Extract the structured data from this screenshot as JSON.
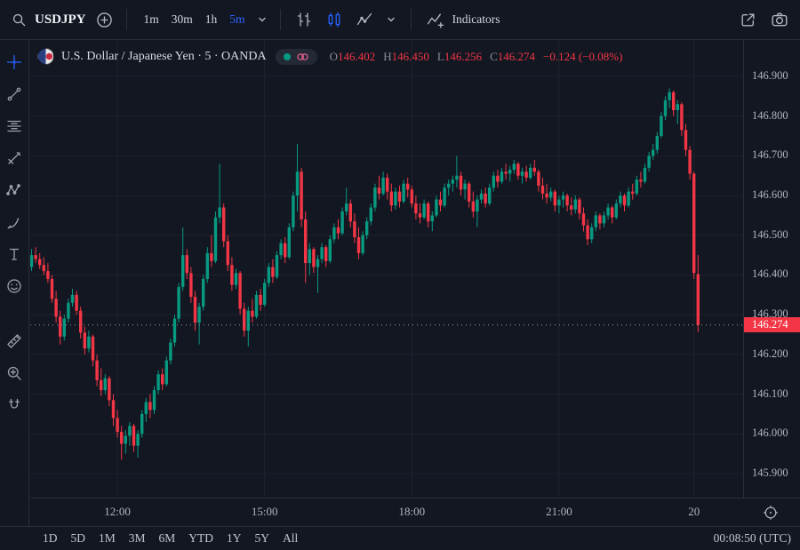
{
  "header": {
    "symbol": "USDJPY",
    "intervals": [
      {
        "label": "1m"
      },
      {
        "label": "30m"
      },
      {
        "label": "1h"
      },
      {
        "label": "5m",
        "active": true
      }
    ],
    "indicators_label": "Indicators"
  },
  "legend": {
    "title": "U.S. Dollar / Japanese Yen · 5 · OANDA",
    "ohlc": {
      "o_label": "O",
      "o": "146.402",
      "h_label": "H",
      "h": "146.450",
      "l_label": "L",
      "l": "146.256",
      "c_label": "C",
      "c": "146.274",
      "change": "−0.124 (−0.08%)"
    }
  },
  "price_axis": {
    "current": "146.274"
  },
  "footer": {
    "ranges": [
      "1D",
      "5D",
      "1M",
      "3M",
      "6M",
      "YTD",
      "1Y",
      "5Y",
      "All"
    ],
    "clock": "00:08:50 (UTC)"
  },
  "colors": {
    "up": "#089981",
    "down": "#f23645",
    "accent": "#2962ff",
    "badge": "#f23645",
    "axis_text": "#b2b5be"
  },
  "icons": [
    "search-icon",
    "plus-circle-icon",
    "chevron-down-icon",
    "bars-style-icon",
    "candles-style-icon",
    "area-style-icon",
    "indicators-icon",
    "share-icon",
    "camera-icon",
    "flag-usdjpy-icon",
    "market-open-dot-icon",
    "waves-icon",
    "axis-settings-icon"
  ],
  "sidebar": {
    "tools": [
      {
        "name": "crosshair-tool",
        "glyph": "crosshair",
        "active": true
      },
      {
        "name": "trend-line-tool",
        "glyph": "trend-line"
      },
      {
        "name": "fib-retracement-tool",
        "glyph": "fib-retracement"
      },
      {
        "name": "pitchfork-tool",
        "glyph": "pitchfork"
      },
      {
        "name": "patterns-tool",
        "glyph": "patterns"
      },
      {
        "name": "brush-tool",
        "glyph": "brush"
      },
      {
        "name": "text-tool",
        "glyph": "text"
      },
      {
        "name": "emoji-tool",
        "glyph": "emoji"
      },
      {
        "name": "measure-tool",
        "glyph": "measure",
        "gap": true
      },
      {
        "name": "zoom-in-tool",
        "glyph": "zoom-in"
      },
      {
        "name": "magnet-tool",
        "glyph": "magnet"
      }
    ]
  },
  "chart_data": {
    "type": "candlestick",
    "title": "U.S. Dollar / Japanese Yen",
    "interval": "5",
    "exchange": "OANDA",
    "last": {
      "o": 146.402,
      "h": 146.45,
      "l": 146.256,
      "c": 146.274,
      "change": -0.124,
      "change_pct": -0.08
    },
    "current_price": 146.274,
    "ylim": [
      145.9,
      146.9
    ],
    "price_gridlines": [
      "146.900",
      "146.800",
      "146.700",
      "146.600",
      "146.500",
      "146.400",
      "146.300",
      "146.200",
      "146.100",
      "146.000",
      "145.900"
    ],
    "time_ticks": [
      {
        "label": "12:00",
        "i": 21
      },
      {
        "label": "15:00",
        "i": 57
      },
      {
        "label": "18:00",
        "i": 93
      },
      {
        "label": "21:00",
        "i": 129
      },
      {
        "label": "20",
        "i": 162
      }
    ],
    "candles": [
      [
        146.42,
        146.465,
        146.41,
        146.45
      ],
      [
        146.45,
        146.47,
        146.43,
        146.44
      ],
      [
        146.44,
        146.455,
        146.415,
        146.425
      ],
      [
        146.425,
        146.445,
        146.4,
        146.41
      ],
      [
        146.41,
        146.43,
        146.38,
        146.39
      ],
      [
        146.39,
        146.4,
        146.33,
        146.34
      ],
      [
        146.34,
        146.36,
        146.28,
        146.295
      ],
      [
        146.295,
        146.31,
        146.225,
        146.245
      ],
      [
        146.245,
        146.3,
        146.235,
        146.29
      ],
      [
        146.29,
        146.34,
        146.28,
        146.33
      ],
      [
        146.33,
        146.365,
        146.32,
        146.35
      ],
      [
        146.35,
        146.36,
        146.3,
        146.31
      ],
      [
        146.31,
        146.32,
        146.24,
        146.255
      ],
      [
        146.255,
        146.27,
        146.2,
        146.215
      ],
      [
        146.215,
        146.26,
        146.205,
        146.245
      ],
      [
        146.245,
        146.25,
        146.17,
        146.185
      ],
      [
        146.185,
        146.2,
        146.12,
        146.135
      ],
      [
        146.135,
        146.165,
        146.095,
        146.11
      ],
      [
        146.11,
        146.15,
        146.1,
        146.14
      ],
      [
        146.14,
        146.145,
        146.07,
        146.085
      ],
      [
        146.085,
        146.1,
        146.02,
        146.04
      ],
      [
        146.04,
        146.06,
        145.99,
        146.005
      ],
      [
        146.005,
        146.02,
        145.935,
        145.975
      ],
      [
        145.975,
        146.01,
        145.95,
        145.995
      ],
      [
        145.995,
        146.03,
        145.97,
        146.02
      ],
      [
        146.02,
        146.025,
        145.955,
        145.97
      ],
      [
        145.97,
        146.01,
        145.94,
        146.0
      ],
      [
        146.0,
        146.06,
        145.99,
        146.05
      ],
      [
        146.05,
        146.09,
        146.03,
        146.08
      ],
      [
        146.08,
        146.1,
        146.04,
        146.06
      ],
      [
        146.06,
        146.12,
        146.05,
        146.11
      ],
      [
        146.11,
        146.16,
        146.1,
        146.15
      ],
      [
        146.15,
        146.165,
        146.11,
        146.125
      ],
      [
        146.125,
        146.195,
        146.12,
        146.185
      ],
      [
        146.185,
        146.24,
        146.175,
        146.23
      ],
      [
        146.23,
        146.3,
        146.22,
        146.29
      ],
      [
        146.29,
        146.38,
        146.28,
        146.37
      ],
      [
        146.37,
        146.52,
        146.36,
        146.45
      ],
      [
        146.45,
        146.465,
        146.39,
        146.405
      ],
      [
        146.405,
        146.42,
        146.33,
        146.345
      ],
      [
        146.345,
        146.36,
        146.26,
        146.28
      ],
      [
        146.28,
        146.33,
        146.225,
        146.32
      ],
      [
        146.32,
        146.4,
        146.31,
        146.39
      ],
      [
        146.39,
        146.47,
        146.38,
        146.455
      ],
      [
        146.455,
        146.5,
        146.42,
        146.435
      ],
      [
        146.435,
        146.56,
        146.43,
        146.545
      ],
      [
        146.545,
        146.68,
        146.53,
        146.57
      ],
      [
        146.57,
        146.58,
        146.47,
        146.485
      ],
      [
        146.485,
        146.5,
        146.41,
        146.425
      ],
      [
        146.425,
        146.445,
        146.36,
        146.375
      ],
      [
        146.375,
        146.415,
        146.365,
        146.405
      ],
      [
        146.405,
        146.41,
        146.3,
        146.315
      ],
      [
        146.315,
        146.33,
        146.245,
        146.26
      ],
      [
        146.26,
        146.32,
        146.22,
        146.31
      ],
      [
        146.31,
        146.34,
        146.28,
        146.295
      ],
      [
        146.295,
        146.36,
        146.29,
        146.35
      ],
      [
        146.35,
        146.365,
        146.31,
        146.325
      ],
      [
        146.325,
        146.39,
        146.32,
        146.38
      ],
      [
        146.38,
        146.43,
        146.37,
        146.42
      ],
      [
        146.42,
        146.44,
        146.38,
        146.395
      ],
      [
        146.395,
        146.46,
        146.39,
        146.45
      ],
      [
        146.45,
        146.49,
        146.44,
        146.48
      ],
      [
        146.48,
        146.495,
        146.43,
        146.445
      ],
      [
        146.445,
        146.53,
        146.44,
        146.52
      ],
      [
        146.52,
        146.61,
        146.51,
        146.6
      ],
      [
        146.6,
        146.73,
        146.56,
        146.66
      ],
      [
        146.66,
        146.67,
        146.52,
        146.54
      ],
      [
        146.54,
        146.56,
        146.38,
        146.43
      ],
      [
        146.43,
        146.48,
        146.4,
        146.465
      ],
      [
        146.465,
        146.47,
        146.405,
        146.42
      ],
      [
        146.42,
        146.45,
        146.355,
        146.44
      ],
      [
        146.44,
        146.48,
        146.43,
        146.47
      ],
      [
        146.47,
        146.475,
        146.42,
        146.435
      ],
      [
        146.435,
        146.5,
        146.43,
        146.49
      ],
      [
        146.49,
        146.53,
        146.48,
        146.52
      ],
      [
        146.52,
        146.54,
        146.49,
        146.505
      ],
      [
        146.505,
        146.57,
        146.5,
        146.56
      ],
      [
        146.56,
        146.62,
        146.55,
        146.58
      ],
      [
        146.58,
        146.59,
        146.52,
        146.535
      ],
      [
        146.535,
        146.555,
        146.48,
        146.495
      ],
      [
        146.495,
        146.52,
        146.44,
        146.455
      ],
      [
        146.455,
        146.51,
        146.45,
        146.5
      ],
      [
        146.5,
        146.545,
        146.49,
        146.535
      ],
      [
        146.535,
        146.58,
        146.525,
        146.57
      ],
      [
        146.57,
        146.63,
        146.56,
        146.62
      ],
      [
        146.62,
        146.65,
        146.59,
        146.605
      ],
      [
        146.605,
        146.66,
        146.6,
        146.645
      ],
      [
        146.645,
        146.655,
        146.59,
        146.61
      ],
      [
        146.61,
        146.63,
        146.56,
        146.575
      ],
      [
        146.575,
        146.62,
        146.565,
        146.61
      ],
      [
        146.61,
        146.625,
        146.57,
        146.585
      ],
      [
        146.585,
        146.64,
        146.58,
        146.63
      ],
      [
        146.63,
        146.645,
        146.595,
        146.615
      ],
      [
        146.615,
        146.625,
        146.57,
        146.58
      ],
      [
        146.58,
        146.6,
        146.54,
        146.555
      ],
      [
        146.555,
        146.58,
        146.53,
        146.545
      ],
      [
        146.545,
        146.59,
        146.54,
        146.58
      ],
      [
        146.58,
        146.585,
        146.52,
        146.535
      ],
      [
        146.535,
        146.56,
        146.51,
        146.55
      ],
      [
        146.55,
        146.6,
        146.545,
        146.59
      ],
      [
        146.59,
        146.61,
        146.56,
        146.575
      ],
      [
        146.575,
        146.63,
        146.57,
        146.62
      ],
      [
        146.62,
        146.64,
        146.6,
        146.63
      ],
      [
        146.63,
        146.65,
        146.61,
        146.64
      ],
      [
        146.64,
        146.7,
        146.62,
        146.65
      ],
      [
        146.65,
        146.66,
        146.6,
        146.615
      ],
      [
        146.615,
        146.64,
        146.59,
        146.63
      ],
      [
        146.63,
        146.635,
        146.57,
        146.585
      ],
      [
        146.585,
        146.61,
        146.545,
        146.56
      ],
      [
        146.56,
        146.6,
        146.52,
        146.59
      ],
      [
        146.59,
        146.615,
        146.58,
        146.605
      ],
      [
        146.605,
        146.62,
        146.57,
        146.58
      ],
      [
        146.58,
        146.63,
        146.575,
        146.62
      ],
      [
        146.62,
        146.66,
        146.61,
        146.65
      ],
      [
        146.65,
        146.665,
        146.62,
        146.635
      ],
      [
        146.635,
        146.67,
        146.63,
        146.66
      ],
      [
        146.66,
        146.68,
        146.64,
        146.655
      ],
      [
        146.655,
        146.675,
        146.635,
        146.665
      ],
      [
        146.665,
        146.69,
        146.655,
        146.68
      ],
      [
        146.68,
        146.685,
        146.64,
        146.65
      ],
      [
        146.65,
        146.67,
        146.63,
        146.66
      ],
      [
        146.66,
        146.675,
        146.635,
        146.645
      ],
      [
        146.645,
        146.68,
        146.64,
        146.67
      ],
      [
        146.67,
        146.69,
        146.65,
        146.66
      ],
      [
        146.66,
        146.665,
        146.61,
        146.625
      ],
      [
        146.625,
        146.645,
        146.59,
        146.605
      ],
      [
        146.605,
        146.63,
        146.58,
        146.595
      ],
      [
        146.595,
        146.62,
        146.585,
        146.61
      ],
      [
        146.61,
        146.615,
        146.56,
        146.575
      ],
      [
        146.575,
        146.6,
        146.555,
        146.59
      ],
      [
        146.59,
        146.61,
        146.57,
        146.6
      ],
      [
        146.6,
        146.605,
        146.56,
        146.575
      ],
      [
        146.575,
        146.595,
        146.55,
        146.565
      ],
      [
        146.565,
        146.6,
        146.555,
        146.59
      ],
      [
        146.59,
        146.595,
        146.54,
        146.555
      ],
      [
        146.555,
        146.57,
        146.51,
        146.525
      ],
      [
        146.525,
        146.54,
        146.475,
        146.49
      ],
      [
        146.49,
        146.53,
        146.48,
        146.52
      ],
      [
        146.52,
        146.56,
        146.51,
        146.55
      ],
      [
        146.55,
        146.555,
        146.515,
        146.53
      ],
      [
        146.53,
        146.56,
        146.52,
        146.55
      ],
      [
        146.55,
        146.58,
        146.54,
        146.57
      ],
      [
        146.57,
        146.575,
        146.53,
        146.545
      ],
      [
        146.545,
        146.59,
        146.54,
        146.58
      ],
      [
        146.58,
        146.61,
        146.57,
        146.6
      ],
      [
        146.6,
        146.605,
        146.56,
        146.575
      ],
      [
        146.575,
        146.62,
        146.57,
        146.61
      ],
      [
        146.61,
        146.63,
        146.59,
        146.605
      ],
      [
        146.605,
        146.65,
        146.6,
        146.64
      ],
      [
        146.64,
        146.66,
        146.62,
        146.635
      ],
      [
        146.635,
        146.68,
        146.63,
        146.67
      ],
      [
        146.67,
        146.71,
        146.66,
        146.7
      ],
      [
        146.7,
        146.73,
        146.69,
        146.715
      ],
      [
        146.715,
        146.76,
        146.705,
        146.75
      ],
      [
        146.75,
        146.81,
        146.745,
        146.8
      ],
      [
        146.8,
        146.85,
        146.79,
        146.84
      ],
      [
        146.84,
        146.87,
        146.82,
        146.86
      ],
      [
        146.86,
        146.865,
        146.8,
        146.815
      ],
      [
        146.815,
        146.84,
        146.78,
        146.83
      ],
      [
        146.83,
        146.835,
        146.75,
        146.765
      ],
      [
        146.765,
        146.78,
        146.7,
        146.715
      ],
      [
        146.715,
        146.725,
        146.64,
        146.655
      ],
      [
        146.655,
        146.66,
        146.39,
        146.405
      ],
      [
        146.402,
        146.45,
        146.256,
        146.274
      ]
    ]
  }
}
